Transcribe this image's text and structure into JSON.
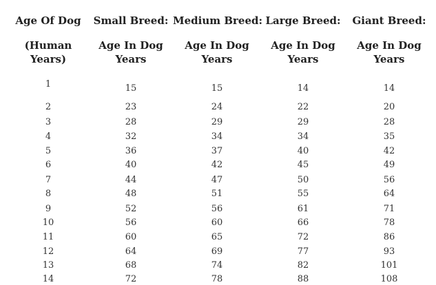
{
  "table": {
    "columns": [
      {
        "header": "Age Of Dog",
        "sub": [
          "(Human",
          "Years)"
        ]
      },
      {
        "header": "Small Breed:",
        "sub": [
          "Age In Dog",
          "Years"
        ]
      },
      {
        "header": "Medium Breed:",
        "sub": [
          "Age In Dog",
          "Years"
        ]
      },
      {
        "header": "Large Breed:",
        "sub": [
          "Age In Dog",
          "Years"
        ]
      },
      {
        "header": "Giant Breed:",
        "sub": [
          "Age In Dog",
          "Years"
        ]
      }
    ],
    "rows": [
      [
        "1",
        "15",
        "15",
        "14",
        "14"
      ],
      [
        "2",
        "23",
        "24",
        "22",
        "20"
      ],
      [
        "3",
        "28",
        "29",
        "29",
        "28"
      ],
      [
        "4",
        "32",
        "34",
        "34",
        "35"
      ],
      [
        "5",
        "36",
        "37",
        "40",
        "42"
      ],
      [
        "6",
        "40",
        "42",
        "45",
        "49"
      ],
      [
        "7",
        "44",
        "47",
        "50",
        "56"
      ],
      [
        "8",
        "48",
        "51",
        "55",
        "64"
      ],
      [
        "9",
        "52",
        "56",
        "61",
        "71"
      ],
      [
        "10",
        "56",
        "60",
        "66",
        "78"
      ],
      [
        "11",
        "60",
        "65",
        "72",
        "86"
      ],
      [
        "12",
        "64",
        "69",
        "77",
        "93"
      ],
      [
        "13",
        "68",
        "74",
        "82",
        "101"
      ],
      [
        "14",
        "72",
        "78",
        "88",
        "108"
      ]
    ]
  }
}
